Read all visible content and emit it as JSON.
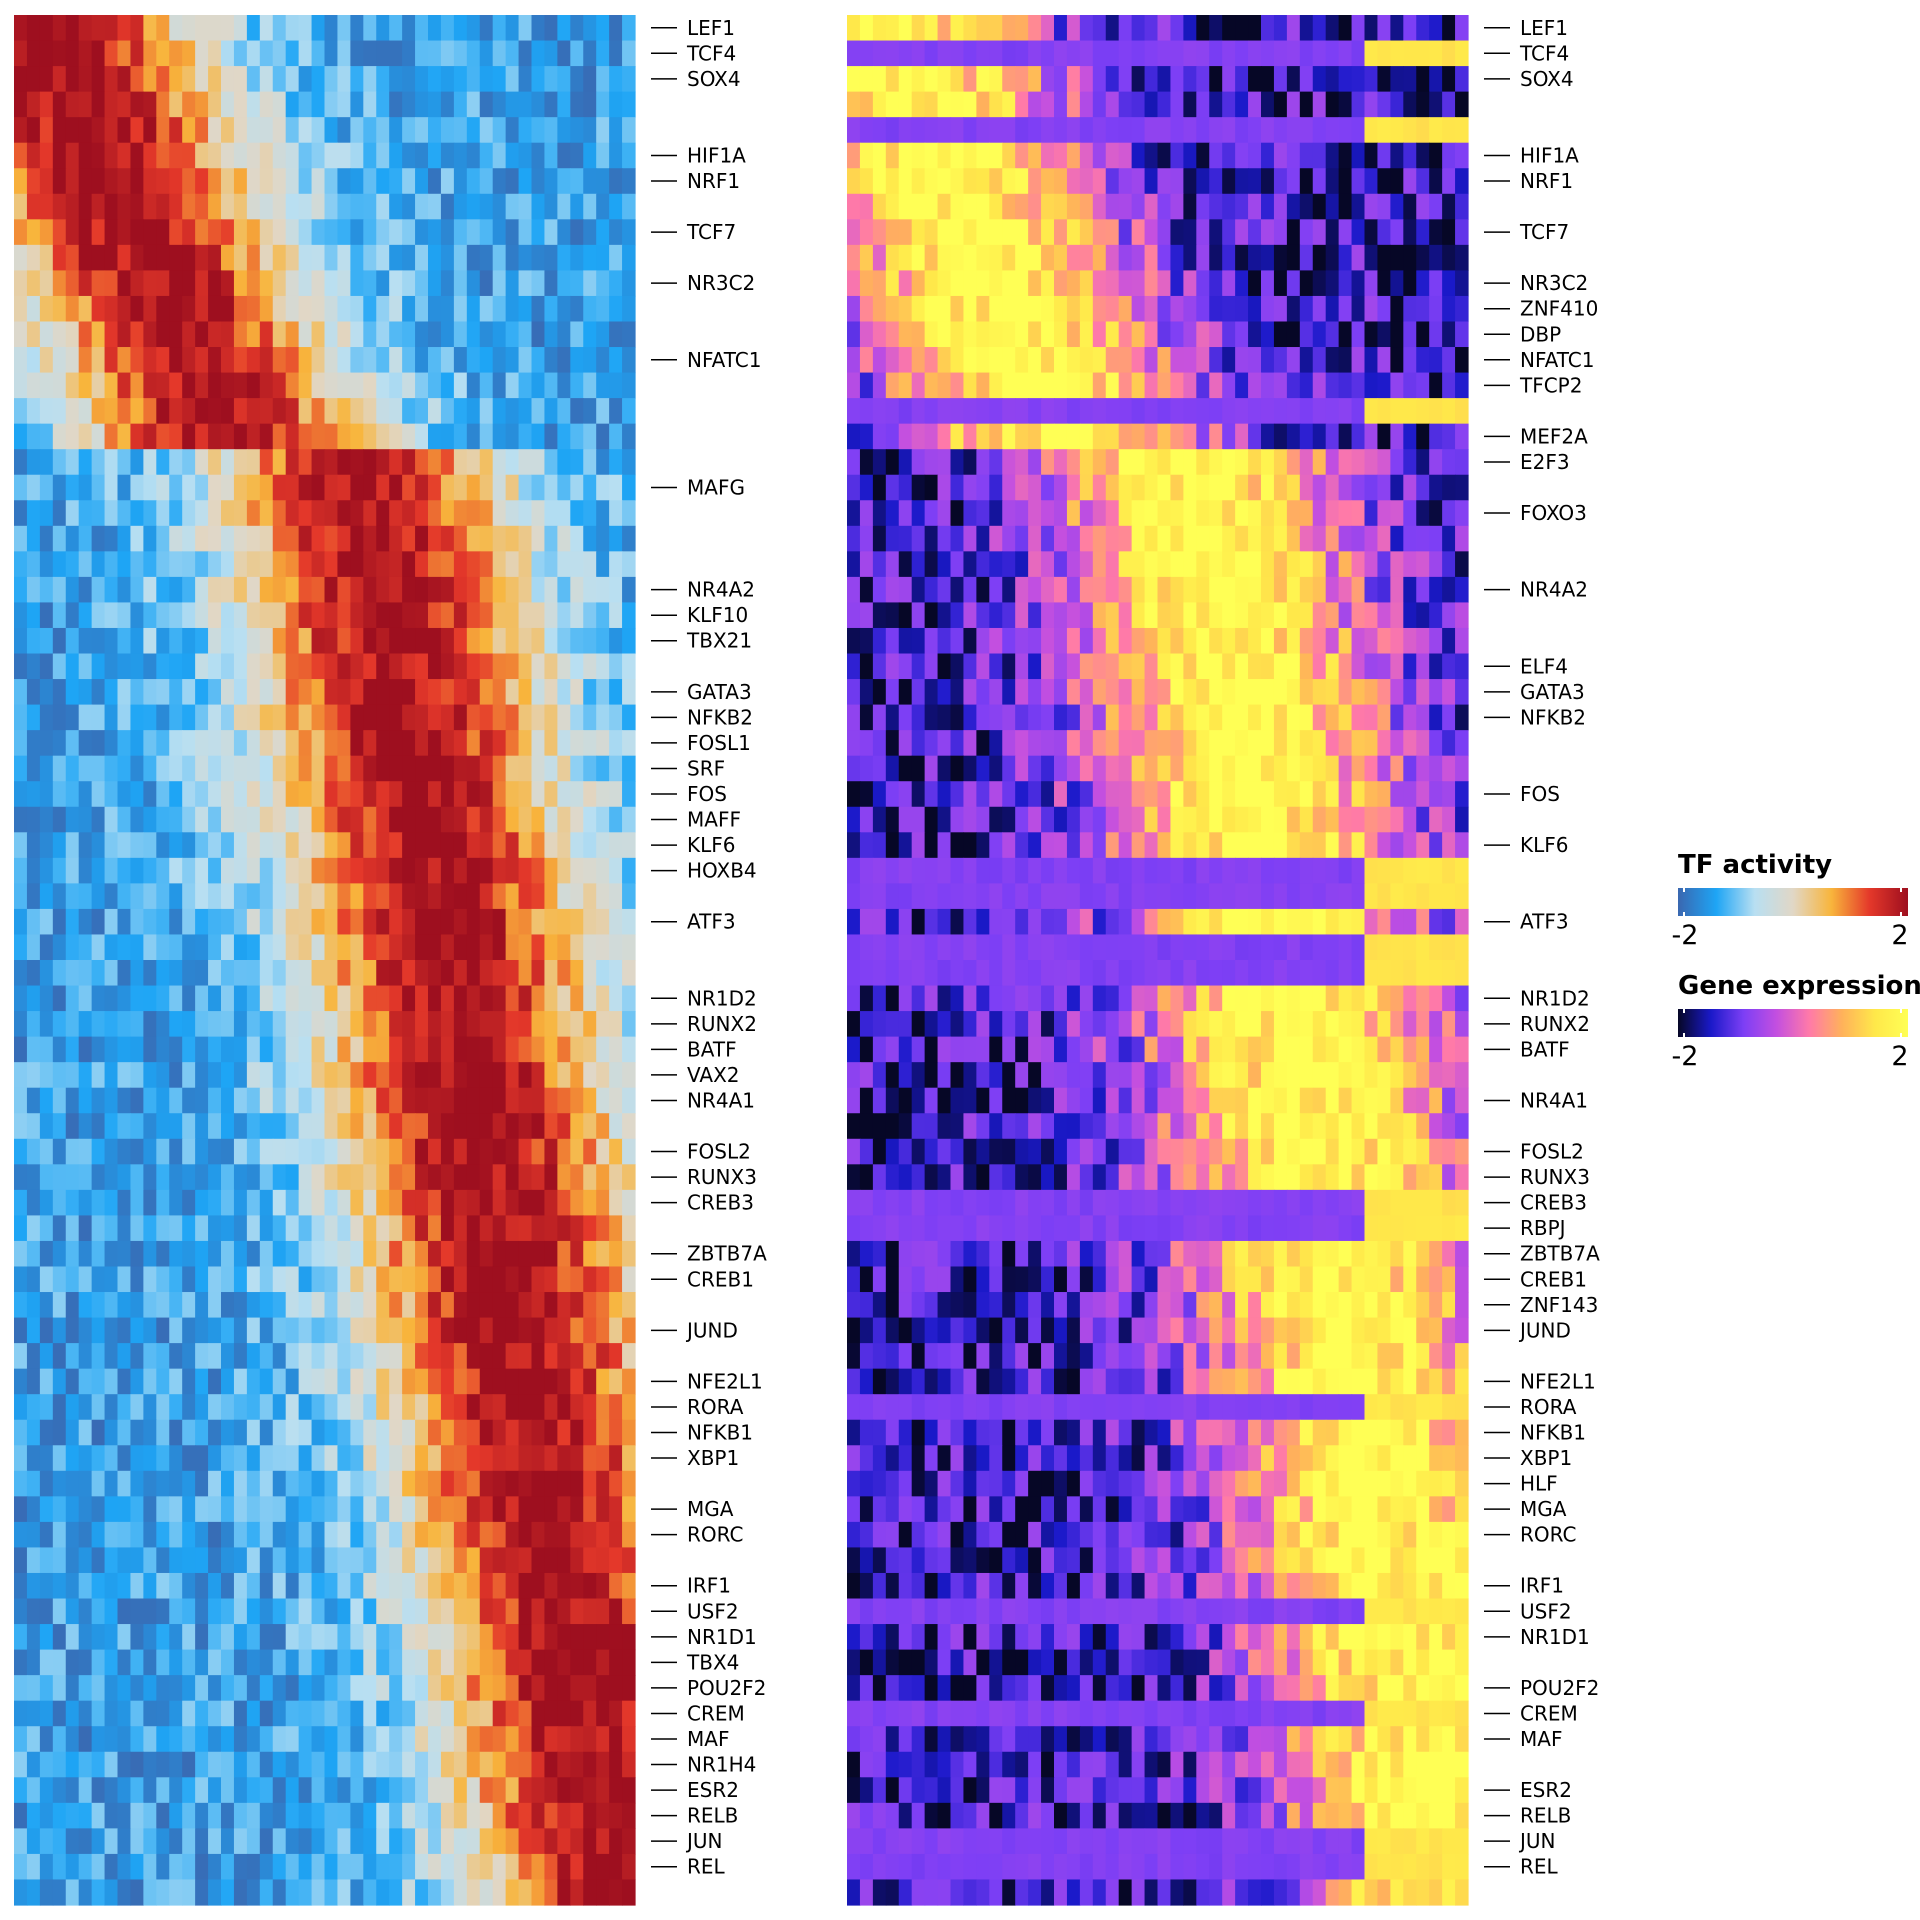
{
  "chart_data": [
    {
      "type": "heatmap",
      "title": "",
      "rows": 74,
      "colorscale_name": "TF activity",
      "value_range": [
        -2,
        2
      ],
      "colorscale": [
        "#3a67b0",
        "#1ea5f5",
        "#b8dff2",
        "#e1d7c6",
        "#f8b53c",
        "#e4382a",
        "#9e0f1f"
      ],
      "row_labels": [
        {
          "row": 0,
          "text": "LEF1"
        },
        {
          "row": 1,
          "text": "TCF4"
        },
        {
          "row": 2,
          "text": "SOX4"
        },
        {
          "row": 5,
          "text": "HIF1A"
        },
        {
          "row": 6,
          "text": "NRF1"
        },
        {
          "row": 8,
          "text": "TCF7"
        },
        {
          "row": 10,
          "text": "NR3C2"
        },
        {
          "row": 13,
          "text": "NFATC1"
        },
        {
          "row": 18,
          "text": "MAFG"
        },
        {
          "row": 22,
          "text": "NR4A2"
        },
        {
          "row": 23,
          "text": "KLF10"
        },
        {
          "row": 24,
          "text": "TBX21"
        },
        {
          "row": 26,
          "text": "GATA3"
        },
        {
          "row": 27,
          "text": "NFKB2"
        },
        {
          "row": 28,
          "text": "FOSL1"
        },
        {
          "row": 29,
          "text": "SRF"
        },
        {
          "row": 30,
          "text": "FOS"
        },
        {
          "row": 31,
          "text": "MAFF"
        },
        {
          "row": 32,
          "text": "KLF6"
        },
        {
          "row": 33,
          "text": "HOXB4"
        },
        {
          "row": 35,
          "text": "ATF3"
        },
        {
          "row": 38,
          "text": "NR1D2"
        },
        {
          "row": 39,
          "text": "RUNX2"
        },
        {
          "row": 40,
          "text": "BATF"
        },
        {
          "row": 41,
          "text": "VAX2"
        },
        {
          "row": 42,
          "text": "NR4A1"
        },
        {
          "row": 44,
          "text": "FOSL2"
        },
        {
          "row": 45,
          "text": "RUNX3"
        },
        {
          "row": 46,
          "text": "CREB3"
        },
        {
          "row": 48,
          "text": "ZBTB7A"
        },
        {
          "row": 49,
          "text": "CREB1"
        },
        {
          "row": 51,
          "text": "JUND"
        },
        {
          "row": 53,
          "text": "NFE2L1"
        },
        {
          "row": 54,
          "text": "RORA"
        },
        {
          "row": 55,
          "text": "NFKB1"
        },
        {
          "row": 56,
          "text": "XBP1"
        },
        {
          "row": 58,
          "text": "MGA"
        },
        {
          "row": 59,
          "text": "RORC"
        },
        {
          "row": 61,
          "text": "IRF1"
        },
        {
          "row": 62,
          "text": "USF2"
        },
        {
          "row": 63,
          "text": "NR1D1"
        },
        {
          "row": 64,
          "text": "TBX4"
        },
        {
          "row": 65,
          "text": "POU2F2"
        },
        {
          "row": 66,
          "text": "CREM"
        },
        {
          "row": 67,
          "text": "MAF"
        },
        {
          "row": 68,
          "text": "NR1H4"
        },
        {
          "row": 69,
          "text": "ESR2"
        },
        {
          "row": 70,
          "text": "RELB"
        },
        {
          "row": 71,
          "text": "JUN"
        },
        {
          "row": 72,
          "text": "REL"
        }
      ]
    },
    {
      "type": "heatmap",
      "title": "",
      "rows": 74,
      "colorscale_name": "Gene expression",
      "value_range": [
        -2,
        2
      ],
      "colorscale": [
        "#060726",
        "#1a19c9",
        "#7d3ff5",
        "#c34fe0",
        "#ff7aa8",
        "#ffb25a",
        "#ffe84a",
        "#ffff55"
      ],
      "row_labels": [
        {
          "row": 0,
          "text": "LEF1"
        },
        {
          "row": 1,
          "text": "TCF4"
        },
        {
          "row": 2,
          "text": "SOX4"
        },
        {
          "row": 5,
          "text": "HIF1A"
        },
        {
          "row": 6,
          "text": "NRF1"
        },
        {
          "row": 8,
          "text": "TCF7"
        },
        {
          "row": 10,
          "text": "NR3C2"
        },
        {
          "row": 11,
          "text": "ZNF410"
        },
        {
          "row": 12,
          "text": "DBP"
        },
        {
          "row": 13,
          "text": "NFATC1"
        },
        {
          "row": 14,
          "text": "TFCP2"
        },
        {
          "row": 16,
          "text": "MEF2A"
        },
        {
          "row": 17,
          "text": "E2F3"
        },
        {
          "row": 19,
          "text": "FOXO3"
        },
        {
          "row": 22,
          "text": "NR4A2"
        },
        {
          "row": 25,
          "text": "ELF4"
        },
        {
          "row": 26,
          "text": "GATA3"
        },
        {
          "row": 27,
          "text": "NFKB2"
        },
        {
          "row": 30,
          "text": "FOS"
        },
        {
          "row": 32,
          "text": "KLF6"
        },
        {
          "row": 35,
          "text": "ATF3"
        },
        {
          "row": 38,
          "text": "NR1D2"
        },
        {
          "row": 39,
          "text": "RUNX2"
        },
        {
          "row": 40,
          "text": "BATF"
        },
        {
          "row": 42,
          "text": "NR4A1"
        },
        {
          "row": 44,
          "text": "FOSL2"
        },
        {
          "row": 45,
          "text": "RUNX3"
        },
        {
          "row": 46,
          "text": "CREB3"
        },
        {
          "row": 47,
          "text": "RBPJ"
        },
        {
          "row": 48,
          "text": "ZBTB7A"
        },
        {
          "row": 49,
          "text": "CREB1"
        },
        {
          "row": 50,
          "text": "ZNF143"
        },
        {
          "row": 51,
          "text": "JUND"
        },
        {
          "row": 53,
          "text": "NFE2L1"
        },
        {
          "row": 54,
          "text": "RORA"
        },
        {
          "row": 55,
          "text": "NFKB1"
        },
        {
          "row": 56,
          "text": "XBP1"
        },
        {
          "row": 57,
          "text": "HLF"
        },
        {
          "row": 58,
          "text": "MGA"
        },
        {
          "row": 59,
          "text": "RORC"
        },
        {
          "row": 61,
          "text": "IRF1"
        },
        {
          "row": 62,
          "text": "USF2"
        },
        {
          "row": 63,
          "text": "NR1D1"
        },
        {
          "row": 65,
          "text": "POU2F2"
        },
        {
          "row": 66,
          "text": "CREM"
        },
        {
          "row": 67,
          "text": "MAF"
        },
        {
          "row": 69,
          "text": "ESR2"
        },
        {
          "row": 70,
          "text": "RELB"
        },
        {
          "row": 71,
          "text": "JUN"
        },
        {
          "row": 72,
          "text": "REL"
        }
      ]
    }
  ],
  "legends": [
    {
      "title": "TF activity",
      "min_label": "-2",
      "max_label": "2"
    },
    {
      "title": "Gene expression",
      "min_label": "-2",
      "max_label": "2"
    }
  ]
}
